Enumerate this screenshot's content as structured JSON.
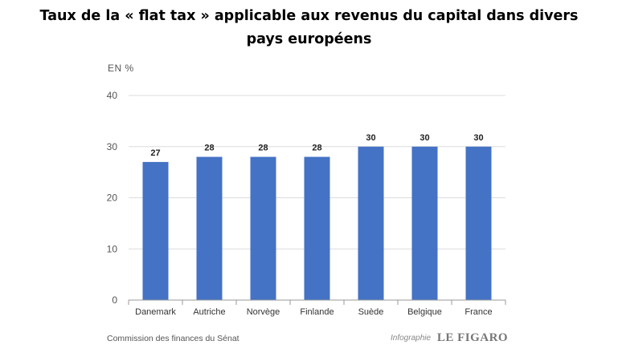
{
  "title_line1": "Taux de la « flat tax » applicable aux revenus du capital dans divers",
  "title_line2": "pays européens",
  "unit_label": "EN %",
  "source": "Commission des finances du Sénat",
  "credit_label": "Infographie",
  "credit_brand": "LE FIGARO",
  "chart_data": {
    "type": "bar",
    "categories": [
      "Danemark",
      "Autriche",
      "Norvège",
      "Finlande",
      "Suède",
      "Belgique",
      "France"
    ],
    "values": [
      27,
      28,
      28,
      28,
      30,
      30,
      30
    ],
    "ylabel": "EN %",
    "ylim": [
      0,
      40
    ],
    "yticks": [
      0,
      10,
      20,
      30,
      40
    ],
    "grid": true,
    "bar_color": "#4472c4",
    "data_labels": [
      "27",
      "28",
      "28",
      "28",
      "30",
      "30",
      "30"
    ]
  }
}
